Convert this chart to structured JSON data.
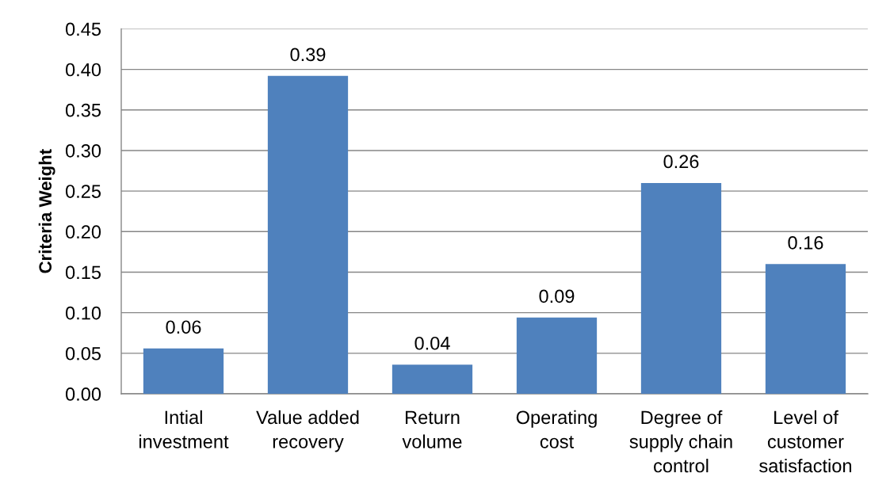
{
  "chart_data": {
    "type": "bar",
    "ylabel": "Criteria Weight",
    "categories": [
      "Intial\ninvestment",
      "Value added\nrecovery",
      "Return\nvolume",
      "Operating\ncost",
      "Degree of\nsupply chain\ncontrol",
      "Level of\ncustomer\nsatisfaction"
    ],
    "values": [
      0.056,
      0.392,
      0.036,
      0.094,
      0.26,
      0.16
    ],
    "value_labels": [
      "0.06",
      "0.39",
      "0.04",
      "0.09",
      "0.26",
      "0.16"
    ],
    "color": "#4f81bd",
    "ylim": [
      0,
      0.45
    ],
    "yticks": [
      {
        "value": 0,
        "label": "0.00"
      },
      0.05,
      {
        "value": 0.1,
        "label": "0.10"
      },
      0.15,
      {
        "value": 0.2,
        "label": "0.20"
      },
      0.25,
      {
        "value": 0.3,
        "label": "0.30"
      },
      0.35,
      {
        "value": 0.4,
        "label": "0.40"
      },
      0.45
    ],
    "grid": "y"
  }
}
